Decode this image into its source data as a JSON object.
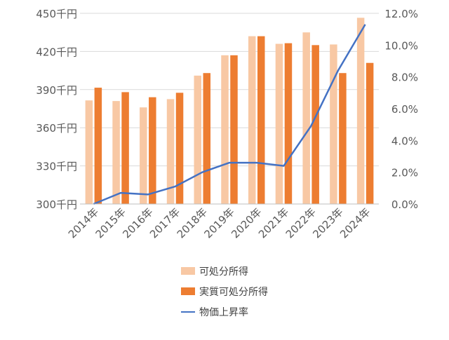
{
  "chart_data": {
    "type": "bar",
    "categories": [
      "2014年",
      "2015年",
      "2016年",
      "2017年",
      "2018年",
      "2019年",
      "2020年",
      "2021年",
      "2022年",
      "2023年",
      "2024年"
    ],
    "series": [
      {
        "name": "可処分所得",
        "kind": "bar",
        "axis": "left",
        "color": "#F8C8A4",
        "values": [
          381.5,
          381,
          376,
          382.5,
          401,
          417,
          432,
          426,
          435,
          425.5,
          446.5
        ]
      },
      {
        "name": "実質可処分所得",
        "kind": "bar",
        "axis": "left",
        "color": "#ED7D31",
        "values": [
          391.5,
          388,
          384,
          387.5,
          403,
          417,
          432,
          426.5,
          425,
          403,
          411
        ]
      },
      {
        "name": "物価上昇率",
        "kind": "line",
        "axis": "right",
        "color": "#4472C4",
        "values": [
          0.0,
          0.7,
          0.6,
          1.1,
          2.0,
          2.6,
          2.6,
          2.4,
          4.9,
          8.4,
          11.3
        ]
      }
    ],
    "y_left": {
      "min": 300,
      "max": 450,
      "step": 30,
      "ticks": [
        "300千円",
        "330千円",
        "360千円",
        "390千円",
        "420千円",
        "450千円"
      ]
    },
    "y_right": {
      "min": 0,
      "max": 12,
      "step": 2,
      "ticks": [
        "0.0%",
        "2.0%",
        "4.0%",
        "6.0%",
        "8.0%",
        "10.0%",
        "12.0%"
      ]
    },
    "grid": true,
    "legend_position": "bottom"
  }
}
